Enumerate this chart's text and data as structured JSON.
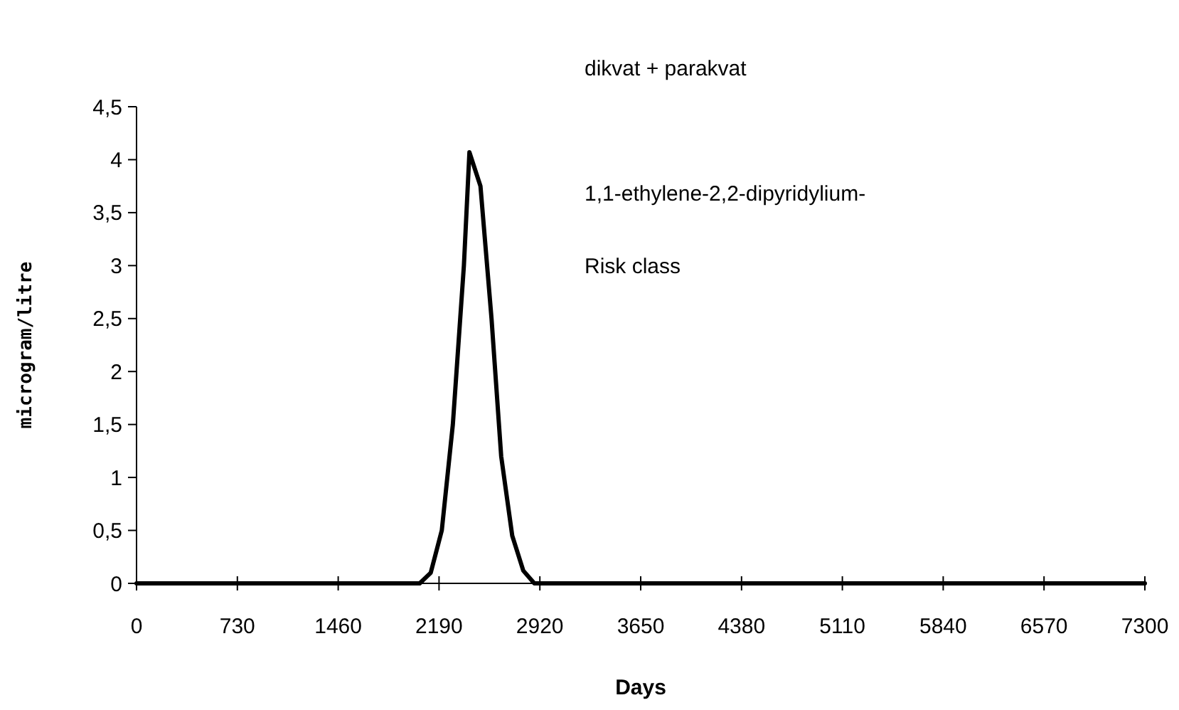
{
  "chart_data": {
    "type": "line",
    "xlabel": "Days",
    "ylabel": "microgram/litre",
    "annotations": [
      "dikvat + parakvat",
      "1,1-ethylene-2,2-dipyridylium-",
      "Risk class"
    ],
    "x": [
      0,
      2050,
      2130,
      2210,
      2290,
      2370,
      2410,
      2490,
      2570,
      2640,
      2720,
      2800,
      2880,
      7300
    ],
    "series": [
      {
        "color": "#000000",
        "values": [
          0,
          0,
          0.1,
          0.5,
          1.5,
          3,
          4.07,
          3.75,
          2.5,
          1.2,
          0.45,
          0.12,
          0,
          0
        ]
      }
    ],
    "xlim": [
      0,
      7300
    ],
    "xticks": [
      0,
      730,
      1460,
      2190,
      2920,
      3650,
      4380,
      5110,
      5840,
      6570,
      7300
    ],
    "ylim": [
      0,
      4.5
    ],
    "yticks": [
      0,
      {
        "value": 0.5,
        "label": "0,5"
      },
      1,
      {
        "value": 1.5,
        "label": "1,5"
      },
      2,
      {
        "value": 2.5,
        "label": "2,5"
      },
      3,
      {
        "value": 3.5,
        "label": "3,5"
      },
      4,
      {
        "value": 4.5,
        "label": "4,5"
      }
    ],
    "grid": false,
    "marker": "none",
    "line_style": "solid"
  }
}
